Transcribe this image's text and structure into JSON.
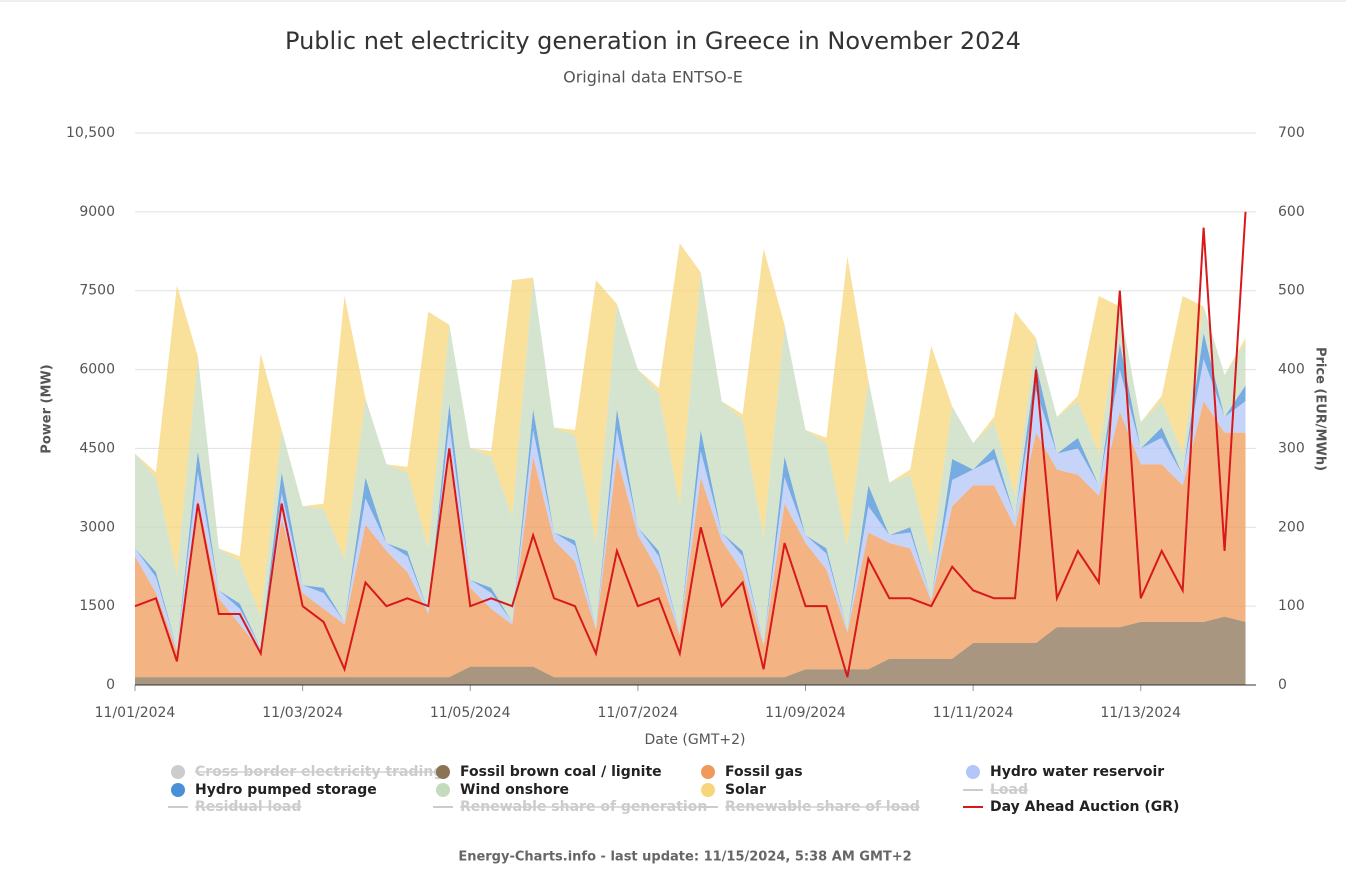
{
  "chart_data": {
    "type": "stacked_area",
    "title": "Public net electricity generation in Greece in November 2024",
    "subtitle": "Original data ENTSO-E",
    "y_label": "Power (MW)",
    "y2_label": "Price (EUR/MWh)",
    "x_label": "Date (GMT+2)",
    "footer": "Energy-Charts.info - last update: 11/15/2024, 5:38 AM GMT+2",
    "xlim": [
      0,
      321
    ],
    "xticks": [
      {
        "value": 0,
        "label": "11/01/2024"
      },
      {
        "value": 48,
        "label": "11/03/2024"
      },
      {
        "value": 96,
        "label": "11/05/2024"
      },
      {
        "value": 144,
        "label": "11/07/2024"
      },
      {
        "value": 192,
        "label": "11/09/2024"
      },
      {
        "value": 240,
        "label": "11/11/2024"
      },
      {
        "value": 288,
        "label": "11/13/2024"
      }
    ],
    "ylim": [
      0,
      10500
    ],
    "yticks": [
      0,
      1500,
      3000,
      4500,
      6000,
      7500,
      9000,
      {
        "value": 10500,
        "label": "10,500"
      }
    ],
    "y2lim": [
      0,
      700
    ],
    "y2ticks": [
      0,
      100,
      200,
      300,
      400,
      500,
      600,
      700
    ],
    "grid": true,
    "x": [
      0,
      6,
      12,
      18,
      24,
      30,
      36,
      42,
      48,
      54,
      60,
      66,
      72,
      78,
      84,
      90,
      96,
      102,
      108,
      114,
      120,
      126,
      132,
      138,
      144,
      150,
      156,
      162,
      168,
      174,
      180,
      186,
      192,
      198,
      204,
      210,
      216,
      222,
      228,
      234,
      240,
      246,
      252,
      258,
      264,
      270,
      276,
      282,
      288,
      294,
      300,
      306,
      312,
      318
    ],
    "series": [
      {
        "name": "Cross border electricity trading",
        "color": "#cccccc",
        "kind": "area",
        "visible": false
      },
      {
        "name": "Fossil brown coal / lignite",
        "color": "#8b7355",
        "kind": "area",
        "visible": true,
        "values": [
          150,
          150,
          150,
          150,
          150,
          150,
          150,
          150,
          150,
          150,
          150,
          150,
          150,
          150,
          150,
          150,
          350,
          350,
          350,
          350,
          150,
          150,
          150,
          150,
          150,
          150,
          150,
          150,
          150,
          150,
          150,
          150,
          300,
          300,
          300,
          300,
          500,
          500,
          500,
          500,
          800,
          800,
          800,
          800,
          1100,
          1100,
          1100,
          1100,
          1200,
          1200,
          1200,
          1200,
          1300,
          1200
        ]
      },
      {
        "name": "Fossil gas",
        "color": "#ef9a5a",
        "kind": "area",
        "visible": true,
        "values": [
          2300,
          1600,
          500,
          3400,
          1500,
          1000,
          500,
          3000,
          1600,
          1300,
          1000,
          2900,
          2400,
          2000,
          1200,
          4300,
          1500,
          1100,
          800,
          4000,
          2600,
          2200,
          900,
          4200,
          2700,
          2000,
          800,
          3800,
          2600,
          2000,
          600,
          3300,
          2400,
          1900,
          700,
          2600,
          2200,
          2100,
          1100,
          2900,
          3000,
          3000,
          2200,
          4000,
          3000,
          2900,
          2500,
          4100,
          3000,
          3000,
          2600,
          4200,
          3500,
          3600
        ]
      },
      {
        "name": "Hydro water reservoir",
        "color": "#b3c6f7",
        "kind": "area",
        "visible": true,
        "values": [
          150,
          300,
          50,
          500,
          150,
          300,
          50,
          500,
          150,
          300,
          50,
          500,
          150,
          300,
          50,
          500,
          150,
          300,
          50,
          500,
          150,
          300,
          50,
          500,
          150,
          300,
          50,
          500,
          150,
          300,
          50,
          500,
          150,
          300,
          50,
          500,
          150,
          300,
          50,
          500,
          300,
          500,
          200,
          800,
          300,
          500,
          200,
          800,
          300,
          500,
          200,
          800,
          300,
          600
        ]
      },
      {
        "name": "Hydro pumped storage",
        "color": "#4a90d9",
        "kind": "area",
        "visible": true,
        "values": [
          0,
          100,
          0,
          400,
          0,
          100,
          0,
          400,
          0,
          100,
          0,
          400,
          0,
          100,
          0,
          400,
          0,
          100,
          0,
          400,
          0,
          100,
          0,
          400,
          0,
          100,
          0,
          400,
          0,
          100,
          0,
          400,
          0,
          100,
          0,
          400,
          0,
          100,
          0,
          400,
          0,
          200,
          0,
          500,
          0,
          200,
          0,
          500,
          0,
          200,
          0,
          500,
          0,
          300
        ]
      },
      {
        "name": "Wind onshore",
        "color": "#c5dbbd",
        "kind": "area",
        "visible": true,
        "values": [
          1800,
          1800,
          1400,
          1800,
          800,
          800,
          600,
          800,
          1500,
          1500,
          1200,
          1500,
          1500,
          1500,
          1200,
          1500,
          2500,
          2500,
          2000,
          2500,
          2000,
          2000,
          1600,
          2000,
          3000,
          3000,
          2400,
          3000,
          2500,
          2500,
          2000,
          2500,
          2000,
          2000,
          1600,
          2000,
          1000,
          1000,
          800,
          1000,
          500,
          500,
          400,
          500,
          700,
          700,
          600,
          700,
          500,
          500,
          400,
          500,
          800,
          800
        ]
      },
      {
        "name": "Solar",
        "color": "#f7d57a",
        "kind": "area",
        "visible": true,
        "values": [
          0,
          100,
          5500,
          0,
          0,
          100,
          5000,
          0,
          0,
          100,
          5000,
          0,
          0,
          100,
          4500,
          0,
          0,
          100,
          4500,
          0,
          0,
          100,
          5000,
          0,
          0,
          100,
          5000,
          0,
          0,
          100,
          5500,
          0,
          0,
          100,
          5500,
          0,
          0,
          100,
          4000,
          0,
          0,
          100,
          3500,
          0,
          0,
          100,
          3000,
          0,
          0,
          100,
          3000,
          0,
          0,
          100
        ]
      },
      {
        "name": "Load",
        "color": "#cccccc",
        "kind": "line",
        "visible": false
      },
      {
        "name": "Residual load",
        "color": "#cccccc",
        "kind": "line",
        "visible": false
      },
      {
        "name": "Renewable share of generation",
        "color": "#cccccc",
        "kind": "line",
        "visible": false
      },
      {
        "name": "Renewable share of load",
        "color": "#cccccc",
        "kind": "line",
        "visible": false
      },
      {
        "name": "Day Ahead Auction (GR)",
        "color": "#d7191c",
        "kind": "line",
        "visible": true,
        "axis": "y2",
        "values": [
          100,
          110,
          30,
          230,
          90,
          90,
          40,
          230,
          100,
          80,
          20,
          130,
          100,
          110,
          100,
          300,
          100,
          110,
          100,
          190,
          110,
          100,
          40,
          170,
          100,
          110,
          40,
          200,
          100,
          130,
          20,
          180,
          100,
          100,
          10,
          160,
          110,
          110,
          100,
          150,
          120,
          110,
          110,
          400,
          110,
          170,
          130,
          500,
          110,
          170,
          120,
          580,
          170,
          600
        ]
      }
    ]
  }
}
